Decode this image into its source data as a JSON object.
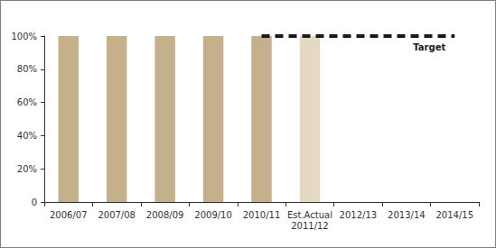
{
  "chart_data": {
    "type": "bar",
    "categories": [
      "2006/07",
      "2007/08",
      "2008/09",
      "2009/10",
      "2010/11",
      "Est.Actual\n2011/12",
      "2012/13",
      "2013/14",
      "2014/15"
    ],
    "series": [
      {
        "type": "bar",
        "colors": [
          "#c4b08b",
          "#c4b08b",
          "#c4b08b",
          "#c4b08b",
          "#c4b08b",
          "#e6d9c4",
          "#c4b08b",
          "#c4b08b",
          "#c4b08b"
        ],
        "values": [
          100,
          100,
          100,
          100,
          100,
          100,
          null,
          null,
          null
        ]
      },
      {
        "name": "Target",
        "type": "line",
        "color": "#1a1a1a",
        "line_style": "dashed",
        "values": [
          null,
          null,
          null,
          null,
          100,
          100,
          100,
          100,
          100
        ]
      }
    ],
    "ylim": [
      0,
      100
    ],
    "yticks": [
      0,
      {
        "value": 20,
        "label": "20%"
      },
      {
        "value": 40,
        "label": "40%"
      },
      {
        "value": 60,
        "label": "60%"
      },
      {
        "value": 80,
        "label": "80%"
      },
      {
        "value": 100,
        "label": "100%"
      }
    ],
    "grid": false
  }
}
